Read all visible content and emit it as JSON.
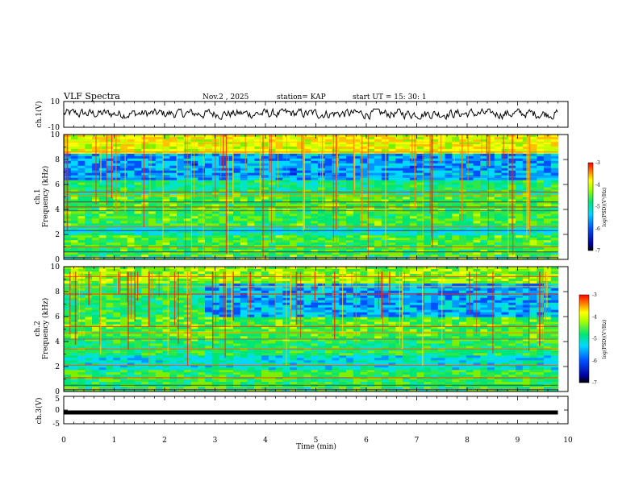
{
  "header": {
    "title": "VLF Spectra",
    "date": "Nov.2 , 2025",
    "station": "station= KAP",
    "start": "start UT =  15: 30: 1"
  },
  "colors": {
    "low": "#000080",
    "mid": "#00e676",
    "high": "#ff0000",
    "trace": "#000000"
  },
  "chart_data": [
    {
      "type": "line",
      "panel": "ch1-waveform",
      "ylabel": "ch.1(V)",
      "yticks": [
        "10",
        "-10"
      ],
      "ylim": [
        -10,
        10
      ],
      "xlim": [
        0,
        10
      ],
      "note": "noisy waveform between about -3 V and +4 V across 0 to 9.8 min"
    },
    {
      "type": "heatmap",
      "panel": "ch1-spectrogram",
      "ylabel": "ch.1\nFrequency (kHz)",
      "yticks": [
        "0",
        "2",
        "4",
        "6",
        "8",
        "10"
      ],
      "ylim": [
        0,
        10
      ],
      "xlim": [
        0,
        10
      ],
      "data_end_min": 9.8,
      "colorbar": {
        "label": "log(PSD)(V²/Hz)",
        "ticks": [
          "-3",
          "-4",
          "-5",
          "-6",
          "-7"
        ],
        "range": [
          -7,
          -3
        ]
      }
    },
    {
      "type": "heatmap",
      "panel": "ch2-spectrogram",
      "ylabel": "ch.2\nFrequency (kHz)",
      "yticks": [
        "0",
        "2",
        "4",
        "6",
        "8",
        "10"
      ],
      "ylim": [
        0,
        10
      ],
      "xlim": [
        0,
        10
      ],
      "data_end_min": 9.8,
      "colorbar": {
        "label": "log(PSD)(V²/Hz)",
        "ticks": [
          "-3",
          "-4",
          "-5",
          "-6",
          "-7"
        ],
        "range": [
          -7,
          -3
        ]
      }
    },
    {
      "type": "line",
      "panel": "ch3-waveform",
      "ylabel": "ch.3(V)",
      "yticks": [
        "5",
        "0",
        "-5"
      ],
      "ylim": [
        -5,
        5
      ],
      "xlim": [
        0,
        10
      ],
      "level_v": -0.3,
      "note": "flat thick trace near -0.3 V from 0 to 9.8 min"
    }
  ],
  "xaxis": {
    "label": "Time (min)",
    "ticks": [
      "0",
      "1",
      "2",
      "3",
      "4",
      "5",
      "6",
      "7",
      "8",
      "9",
      "10"
    ]
  }
}
